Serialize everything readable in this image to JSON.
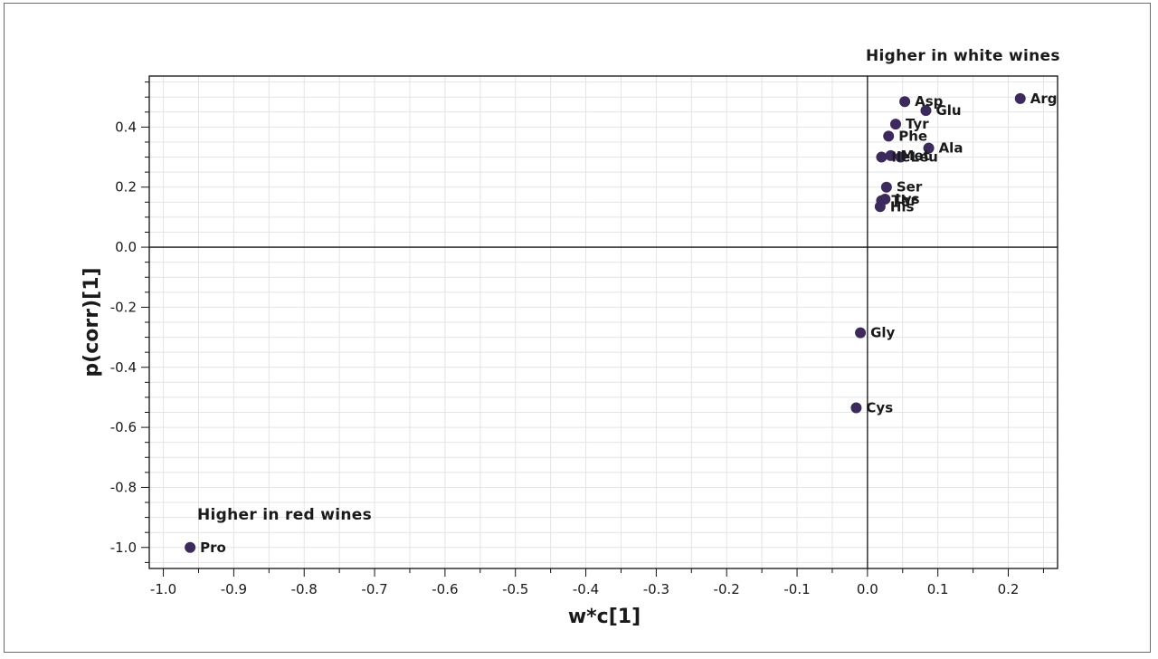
{
  "chart_data": {
    "type": "scatter",
    "title": "",
    "xlabel": "w*c[1]",
    "ylabel": "p(corr)[1]",
    "xlim": [
      -1.02,
      0.27
    ],
    "ylim": [
      -1.07,
      0.57
    ],
    "xticks": [
      -1.0,
      -0.9,
      -0.8,
      -0.7,
      -0.6,
      -0.5,
      -0.4,
      -0.3,
      -0.2,
      -0.1,
      0.0,
      0.1,
      0.2
    ],
    "xtick_labels": [
      "-1.0",
      "-0.9",
      "-0.8",
      "-0.7",
      "-0.6",
      "-0.5",
      "-0.4",
      "-0.3",
      "-0.2",
      "-0.1",
      "0.0",
      "0.1",
      "0.2"
    ],
    "yticks": [
      0.4,
      0.2,
      0.0,
      -0.2,
      -0.4,
      -0.6,
      -0.8,
      -1.0
    ],
    "ytick_labels": [
      "0.4",
      "0.2",
      "0.0",
      "-0.2",
      "-0.4",
      "-0.6",
      "-0.8",
      "-1.0"
    ],
    "grid": true,
    "marker_color": "#3d2a5c",
    "points": [
      {
        "label": "Arg",
        "x": 0.217,
        "y": 0.495
      },
      {
        "label": "Asp",
        "x": 0.053,
        "y": 0.485
      },
      {
        "label": "Glu",
        "x": 0.083,
        "y": 0.455
      },
      {
        "label": "Tyr",
        "x": 0.04,
        "y": 0.41
      },
      {
        "label": "Phe",
        "x": 0.03,
        "y": 0.37
      },
      {
        "label": "Ala",
        "x": 0.087,
        "y": 0.33
      },
      {
        "label": "Met",
        "x": 0.033,
        "y": 0.305
      },
      {
        "label": "Ile",
        "x": 0.02,
        "y": 0.3
      },
      {
        "label": "Leu",
        "x": 0.047,
        "y": 0.3
      },
      {
        "label": "Ser",
        "x": 0.027,
        "y": 0.2
      },
      {
        "label": "Thr",
        "x": 0.02,
        "y": 0.155
      },
      {
        "label": "Lys",
        "x": 0.025,
        "y": 0.16
      },
      {
        "label": "His",
        "x": 0.018,
        "y": 0.135
      },
      {
        "label": "Gly",
        "x": -0.01,
        "y": -0.285
      },
      {
        "label": "Cys",
        "x": -0.016,
        "y": -0.535
      },
      {
        "label": "Pro",
        "x": -0.962,
        "y": -1.0
      }
    ],
    "annotations": [
      {
        "text": "Higher in white wines"
      },
      {
        "text": "Higher in red wines"
      }
    ]
  }
}
